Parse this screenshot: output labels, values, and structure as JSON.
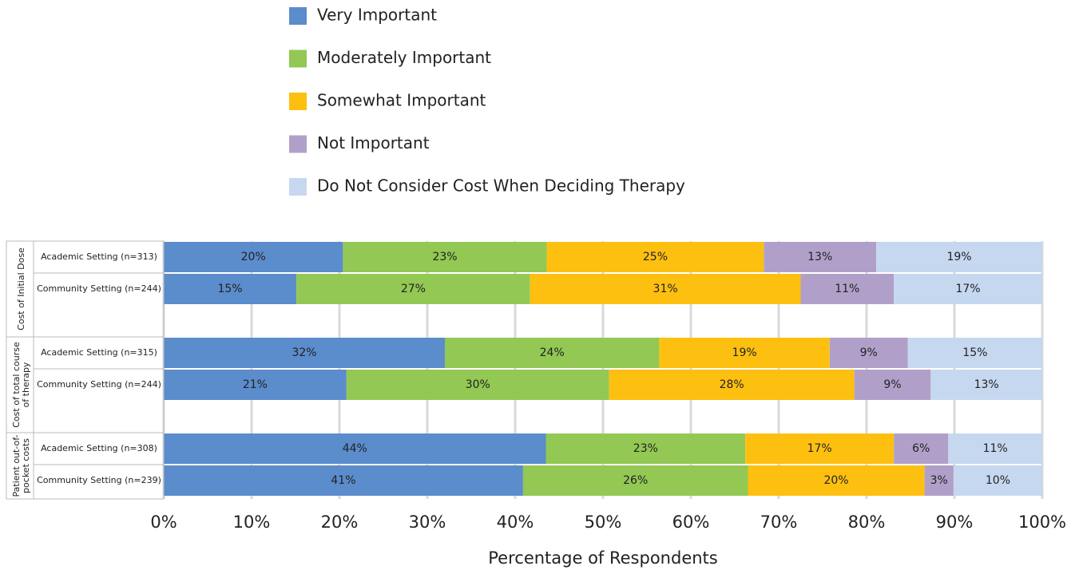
{
  "chart_data": {
    "type": "stacked_bar_horizontal",
    "xlabel": "Percentage of Respondents",
    "xlim": [
      0,
      100
    ],
    "xticks": [
      {
        "value": 0,
        "label": "0%"
      },
      {
        "value": 10,
        "label": "10%"
      },
      {
        "value": 20,
        "label": "20%"
      },
      {
        "value": 30,
        "label": "30%"
      },
      {
        "value": 40,
        "label": "40%"
      },
      {
        "value": 50,
        "label": "50%"
      },
      {
        "value": 60,
        "label": "60%"
      },
      {
        "value": 70,
        "label": "70%"
      },
      {
        "value": 80,
        "label": "80%"
      },
      {
        "value": 90,
        "label": "90%"
      },
      {
        "value": 100,
        "label": "100%"
      }
    ],
    "grid": true,
    "legend": "top",
    "groups": [
      {
        "label": [
          "Cost of Initial Dose"
        ],
        "categories": [
          "Academic Setting (n=313)",
          "Community Setting (n=244)"
        ]
      },
      {
        "label": [
          "Cost of total course",
          "of therapy"
        ],
        "categories": [
          "Academic Setting (n=315)",
          "Community Setting (n=244)"
        ]
      },
      {
        "label": [
          "Patient out-of-",
          "pocket costs"
        ],
        "categories": [
          "Academic Setting (n=308)",
          "Community Setting (n=239)"
        ]
      }
    ],
    "series": [
      {
        "name": "Very Important",
        "color": "#5b8ccc",
        "values": [
          20.4,
          15.1,
          32.0,
          20.8,
          43.5,
          40.9
        ],
        "value_labels": [
          "20%",
          "15%",
          "32%",
          "21%",
          "44%",
          "41%"
        ]
      },
      {
        "name": "Moderately Important",
        "color": "#92c853",
        "values": [
          23.2,
          26.6,
          24.4,
          29.9,
          22.7,
          25.6
        ],
        "value_labels": [
          "23%",
          "27%",
          "24%",
          "30%",
          "23%",
          "26%"
        ]
      },
      {
        "name": "Somewhat Important",
        "color": "#fdc010",
        "values": [
          24.7,
          30.8,
          19.4,
          27.9,
          16.9,
          20.1
        ],
        "value_labels": [
          "25%",
          "31%",
          "19%",
          "28%",
          "17%",
          "20%"
        ]
      },
      {
        "name": "Not Important",
        "color": "#b0a0c9",
        "values": [
          12.8,
          10.6,
          8.9,
          8.7,
          6.2,
          3.3
        ],
        "value_labels": [
          "13%",
          "11%",
          "9%",
          "9%",
          "6%",
          "3%"
        ]
      },
      {
        "name": "Do Not Consider Cost When Deciding Therapy",
        "color": "#c6d8f0",
        "values": [
          18.9,
          16.9,
          15.3,
          12.7,
          10.7,
          10.1
        ],
        "value_labels": [
          "19%",
          "17%",
          "15%",
          "13%",
          "11%",
          "10%"
        ]
      }
    ]
  }
}
